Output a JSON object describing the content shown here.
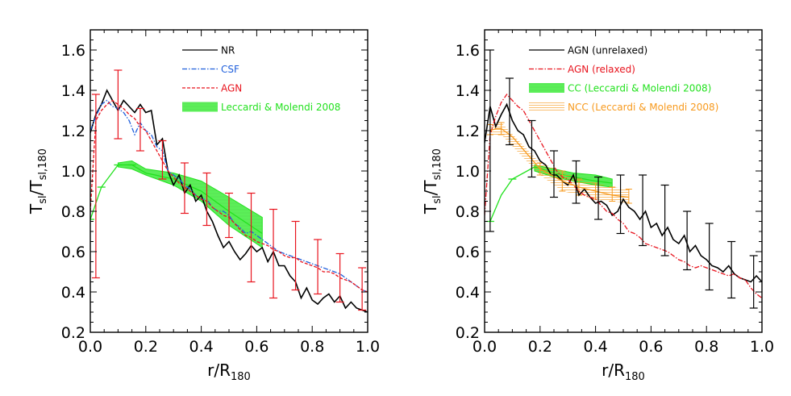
{
  "colors": {
    "black": "#000000",
    "blue": "#1f5fdc",
    "red": "#e8141e",
    "green": "#22e11e",
    "orange": "#f79a1e"
  },
  "chart_data": [
    {
      "type": "line",
      "xlabel": {
        "main": "r/R",
        "sub": "180"
      },
      "ylabel": {
        "main1": "T",
        "sub1": "sl",
        "sep": "/T",
        "sub2": "sl,180"
      },
      "xlim": [
        0,
        1.0
      ],
      "ylim": [
        0.2,
        1.7
      ],
      "xticks": [
        "0.0",
        "0.2",
        "0.4",
        "0.6",
        "0.8",
        "1.0"
      ],
      "yticks": [
        "0.2",
        "0.4",
        "0.6",
        "0.8",
        "1.0",
        "1.2",
        "1.4",
        "1.6"
      ],
      "legend_position": "top-right",
      "series": [
        {
          "name": "NR",
          "color_key": "black",
          "style": "solid",
          "x": [
            0.0,
            0.02,
            0.04,
            0.06,
            0.08,
            0.1,
            0.12,
            0.14,
            0.16,
            0.18,
            0.2,
            0.22,
            0.24,
            0.26,
            0.28,
            0.3,
            0.32,
            0.34,
            0.36,
            0.38,
            0.4,
            0.42,
            0.44,
            0.46,
            0.48,
            0.5,
            0.52,
            0.54,
            0.56,
            0.58,
            0.6,
            0.62,
            0.64,
            0.66,
            0.68,
            0.7,
            0.72,
            0.74,
            0.76,
            0.78,
            0.8,
            0.82,
            0.84,
            0.86,
            0.88,
            0.9,
            0.92,
            0.94,
            0.96,
            0.98,
            1.0
          ],
          "y": [
            1.19,
            1.28,
            1.33,
            1.4,
            1.35,
            1.3,
            1.35,
            1.32,
            1.29,
            1.33,
            1.29,
            1.3,
            1.13,
            1.16,
            1.0,
            0.93,
            0.98,
            0.89,
            0.93,
            0.85,
            0.88,
            0.8,
            0.75,
            0.68,
            0.62,
            0.65,
            0.6,
            0.56,
            0.59,
            0.63,
            0.6,
            0.62,
            0.55,
            0.6,
            0.53,
            0.53,
            0.48,
            0.45,
            0.37,
            0.42,
            0.36,
            0.34,
            0.37,
            0.39,
            0.35,
            0.38,
            0.32,
            0.35,
            0.32,
            0.31,
            0.3
          ]
        },
        {
          "name": "CSF",
          "color_key": "blue",
          "style": "dashdot",
          "x": [
            0.0,
            0.02,
            0.04,
            0.06,
            0.08,
            0.1,
            0.12,
            0.14,
            0.16,
            0.18,
            0.2,
            0.22,
            0.24,
            0.26,
            0.28,
            0.3,
            0.32,
            0.34,
            0.36,
            0.38,
            0.4,
            0.42,
            0.44,
            0.46,
            0.48,
            0.5,
            0.52,
            0.54,
            0.56,
            0.58,
            0.6,
            0.62,
            0.64,
            0.66,
            0.68,
            0.7,
            0.72,
            0.74,
            0.76,
            0.78,
            0.8,
            0.82,
            0.84,
            0.86,
            0.88,
            0.9,
            0.92,
            0.94,
            0.96,
            0.98,
            1.0
          ],
          "y": [
            1.2,
            1.27,
            1.33,
            1.35,
            1.32,
            1.31,
            1.29,
            1.25,
            1.18,
            1.24,
            1.2,
            1.18,
            1.12,
            1.1,
            1.0,
            0.98,
            0.96,
            0.93,
            0.91,
            0.88,
            0.86,
            0.86,
            0.82,
            0.8,
            0.8,
            0.78,
            0.74,
            0.72,
            0.69,
            0.7,
            0.68,
            0.66,
            0.64,
            0.62,
            0.6,
            0.59,
            0.58,
            0.57,
            0.56,
            0.55,
            0.54,
            0.53,
            0.52,
            0.51,
            0.5,
            0.49,
            0.47,
            0.45,
            0.43,
            0.41,
            0.4
          ]
        },
        {
          "name": "AGN",
          "color_key": "red",
          "style": "dashed",
          "x": [
            0.0,
            0.02,
            0.04,
            0.06,
            0.08,
            0.1,
            0.12,
            0.14,
            0.16,
            0.18,
            0.2,
            0.22,
            0.24,
            0.26,
            0.28,
            0.3,
            0.32,
            0.34,
            0.36,
            0.38,
            0.4,
            0.42,
            0.44,
            0.46,
            0.48,
            0.5,
            0.52,
            0.54,
            0.56,
            0.58,
            0.6,
            0.62,
            0.64,
            0.66,
            0.68,
            0.7,
            0.72,
            0.74,
            0.76,
            0.78,
            0.8,
            0.82,
            0.84,
            0.86,
            0.88,
            0.9,
            0.92,
            0.94,
            0.96,
            0.98,
            1.0
          ],
          "y": [
            0.8,
            1.25,
            1.3,
            1.33,
            1.35,
            1.33,
            1.31,
            1.28,
            1.26,
            1.22,
            1.2,
            1.15,
            1.1,
            1.05,
            1.0,
            0.97,
            0.94,
            0.92,
            0.9,
            0.88,
            0.86,
            0.85,
            0.82,
            0.8,
            0.78,
            0.77,
            0.74,
            0.71,
            0.68,
            0.67,
            0.65,
            0.64,
            0.63,
            0.61,
            0.6,
            0.58,
            0.57,
            0.57,
            0.55,
            0.54,
            0.53,
            0.52,
            0.5,
            0.5,
            0.49,
            0.47,
            0.46,
            0.45,
            0.43,
            0.41,
            0.4
          ]
        }
      ],
      "errorbars": {
        "series_name": "AGN",
        "color_key": "red",
        "x": [
          0.02,
          0.1,
          0.18,
          0.26,
          0.34,
          0.42,
          0.5,
          0.58,
          0.66,
          0.74,
          0.82,
          0.9,
          0.98
        ],
        "y": [
          0.93,
          1.33,
          1.22,
          1.05,
          0.92,
          0.86,
          0.77,
          0.67,
          0.61,
          0.57,
          0.52,
          0.47,
          0.41
        ],
        "lower": [
          0.47,
          1.16,
          1.1,
          0.96,
          0.79,
          0.73,
          0.67,
          0.45,
          0.37,
          0.41,
          0.39,
          0.35,
          0.31
        ],
        "upper": [
          1.38,
          1.5,
          1.31,
          1.15,
          1.04,
          0.99,
          0.89,
          0.89,
          0.81,
          0.75,
          0.66,
          0.59,
          0.52
        ]
      },
      "bands": [
        {
          "name": "Leccardi & Molendi 2008",
          "color_key": "green",
          "x": [
            0.1,
            0.15,
            0.2,
            0.3,
            0.4,
            0.5,
            0.62
          ],
          "lower": [
            1.02,
            1.01,
            0.98,
            0.93,
            0.85,
            0.73,
            0.62
          ],
          "upper": [
            1.04,
            1.05,
            1.01,
            0.99,
            0.95,
            0.87,
            0.77
          ],
          "center": {
            "x": [
              0.0,
              0.04,
              0.1,
              0.15,
              0.2,
              0.3,
              0.4,
              0.5,
              0.62
            ],
            "y": [
              0.76,
              0.92,
              1.03,
              1.03,
              0.99,
              0.96,
              0.9,
              0.8,
              0.69
            ]
          },
          "markers_x": [
            0.0,
            0.04,
            0.1,
            0.15
          ]
        }
      ]
    },
    {
      "type": "line",
      "xlabel": {
        "main": "r/R",
        "sub": "180"
      },
      "ylabel": {
        "main1": "T",
        "sub1": "sl",
        "sep": "/T",
        "sub2": "sl,180"
      },
      "xlim": [
        0,
        1.0
      ],
      "ylim": [
        0.2,
        1.7
      ],
      "xticks": [
        "0.0",
        "0.2",
        "0.4",
        "0.6",
        "0.8",
        "1.0"
      ],
      "yticks": [
        "0.2",
        "0.4",
        "0.6",
        "0.8",
        "1.0",
        "1.2",
        "1.4",
        "1.6"
      ],
      "legend_position": "top-right",
      "series": [
        {
          "name": "AGN (unrelaxed)",
          "color_key": "black",
          "style": "solid",
          "x": [
            0.0,
            0.02,
            0.04,
            0.06,
            0.08,
            0.1,
            0.12,
            0.14,
            0.16,
            0.18,
            0.2,
            0.22,
            0.24,
            0.26,
            0.28,
            0.3,
            0.32,
            0.34,
            0.36,
            0.38,
            0.4,
            0.42,
            0.44,
            0.46,
            0.48,
            0.5,
            0.52,
            0.54,
            0.56,
            0.58,
            0.6,
            0.62,
            0.64,
            0.66,
            0.68,
            0.7,
            0.72,
            0.74,
            0.76,
            0.78,
            0.8,
            0.82,
            0.84,
            0.86,
            0.88,
            0.9,
            0.92,
            0.94,
            0.96,
            0.98,
            1.0
          ],
          "y": [
            1.14,
            1.32,
            1.22,
            1.28,
            1.33,
            1.25,
            1.2,
            1.18,
            1.12,
            1.1,
            1.05,
            1.03,
            0.98,
            0.98,
            0.95,
            0.93,
            0.98,
            0.88,
            0.91,
            0.87,
            0.84,
            0.85,
            0.83,
            0.78,
            0.8,
            0.86,
            0.82,
            0.8,
            0.76,
            0.8,
            0.72,
            0.74,
            0.68,
            0.72,
            0.66,
            0.64,
            0.68,
            0.6,
            0.63,
            0.58,
            0.56,
            0.53,
            0.52,
            0.5,
            0.53,
            0.49,
            0.47,
            0.46,
            0.45,
            0.48,
            0.45
          ]
        },
        {
          "name": "AGN (relaxed)",
          "color_key": "red",
          "style": "dashdot",
          "x": [
            0.0,
            0.02,
            0.04,
            0.06,
            0.08,
            0.1,
            0.12,
            0.14,
            0.16,
            0.18,
            0.2,
            0.22,
            0.24,
            0.26,
            0.28,
            0.3,
            0.32,
            0.34,
            0.36,
            0.38,
            0.4,
            0.42,
            0.44,
            0.46,
            0.48,
            0.5,
            0.52,
            0.54,
            0.56,
            0.58,
            0.6,
            0.62,
            0.64,
            0.66,
            0.68,
            0.7,
            0.72,
            0.74,
            0.76,
            0.78,
            0.8,
            0.82,
            0.84,
            0.86,
            0.88,
            0.9,
            0.92,
            0.94,
            0.96,
            0.98,
            1.0
          ],
          "y": [
            0.78,
            1.18,
            1.27,
            1.34,
            1.38,
            1.35,
            1.32,
            1.3,
            1.25,
            1.2,
            1.15,
            1.1,
            1.05,
            1.0,
            0.97,
            0.96,
            0.93,
            0.9,
            0.88,
            0.87,
            0.86,
            0.83,
            0.8,
            0.79,
            0.76,
            0.74,
            0.7,
            0.69,
            0.67,
            0.64,
            0.63,
            0.62,
            0.61,
            0.6,
            0.58,
            0.56,
            0.55,
            0.53,
            0.52,
            0.53,
            0.52,
            0.51,
            0.5,
            0.49,
            0.48,
            0.49,
            0.47,
            0.46,
            0.42,
            0.39,
            0.37
          ]
        },
        {
          "name": "NCC (Leccardi & Molendi 2008)",
          "color_key": "orange",
          "style": "solid",
          "x": [
            0.02,
            0.04,
            0.06,
            0.1,
            0.2,
            0.28,
            0.34,
            0.4,
            0.46,
            0.52
          ],
          "y": [
            1.2,
            1.21,
            1.21,
            1.17,
            1.01,
            0.95,
            0.92,
            0.9,
            0.88,
            0.87
          ]
        }
      ],
      "errorbars": {
        "series_name": "AGN (unrelaxed)",
        "color_key": "black",
        "x": [
          0.02,
          0.09,
          0.17,
          0.25,
          0.33,
          0.41,
          0.49,
          0.57,
          0.65,
          0.73,
          0.81,
          0.89,
          0.97
        ],
        "y": [
          1.14,
          1.33,
          1.1,
          0.98,
          0.93,
          0.85,
          0.79,
          0.8,
          0.72,
          0.6,
          0.56,
          0.51,
          0.45
        ],
        "lower": [
          0.7,
          1.13,
          0.97,
          0.87,
          0.84,
          0.76,
          0.69,
          0.63,
          0.58,
          0.51,
          0.41,
          0.37,
          0.32
        ],
        "upper": [
          1.6,
          1.46,
          1.25,
          1.1,
          1.05,
          0.97,
          0.98,
          0.98,
          0.93,
          0.8,
          0.74,
          0.65,
          0.58
        ]
      },
      "bands": [
        {
          "name": "CC (Leccardi & Molendi 2008)",
          "color_key": "green",
          "x": [
            0.18,
            0.25,
            0.32,
            0.4,
            0.46
          ],
          "lower": [
            1.0,
            0.97,
            0.95,
            0.93,
            0.92
          ],
          "upper": [
            1.03,
            1.01,
            0.99,
            0.98,
            0.96
          ],
          "center": {
            "x": [
              0.02,
              0.06,
              0.1,
              0.18,
              0.25,
              0.32,
              0.4,
              0.46
            ],
            "y": [
              0.75,
              0.88,
              0.96,
              1.02,
              0.99,
              0.97,
              0.95,
              0.94
            ]
          },
          "markers_x": [
            0.02,
            0.1
          ]
        }
      ],
      "orange_errorbars": {
        "x": [
          0.02,
          0.06,
          0.2,
          0.28,
          0.34,
          0.4,
          0.46,
          0.52
        ],
        "lower": [
          1.18,
          1.18,
          0.98,
          0.9,
          0.88,
          0.86,
          0.85,
          0.84
        ],
        "upper": [
          1.23,
          1.24,
          1.04,
          1.0,
          0.96,
          0.94,
          0.92,
          0.91
        ]
      }
    }
  ]
}
